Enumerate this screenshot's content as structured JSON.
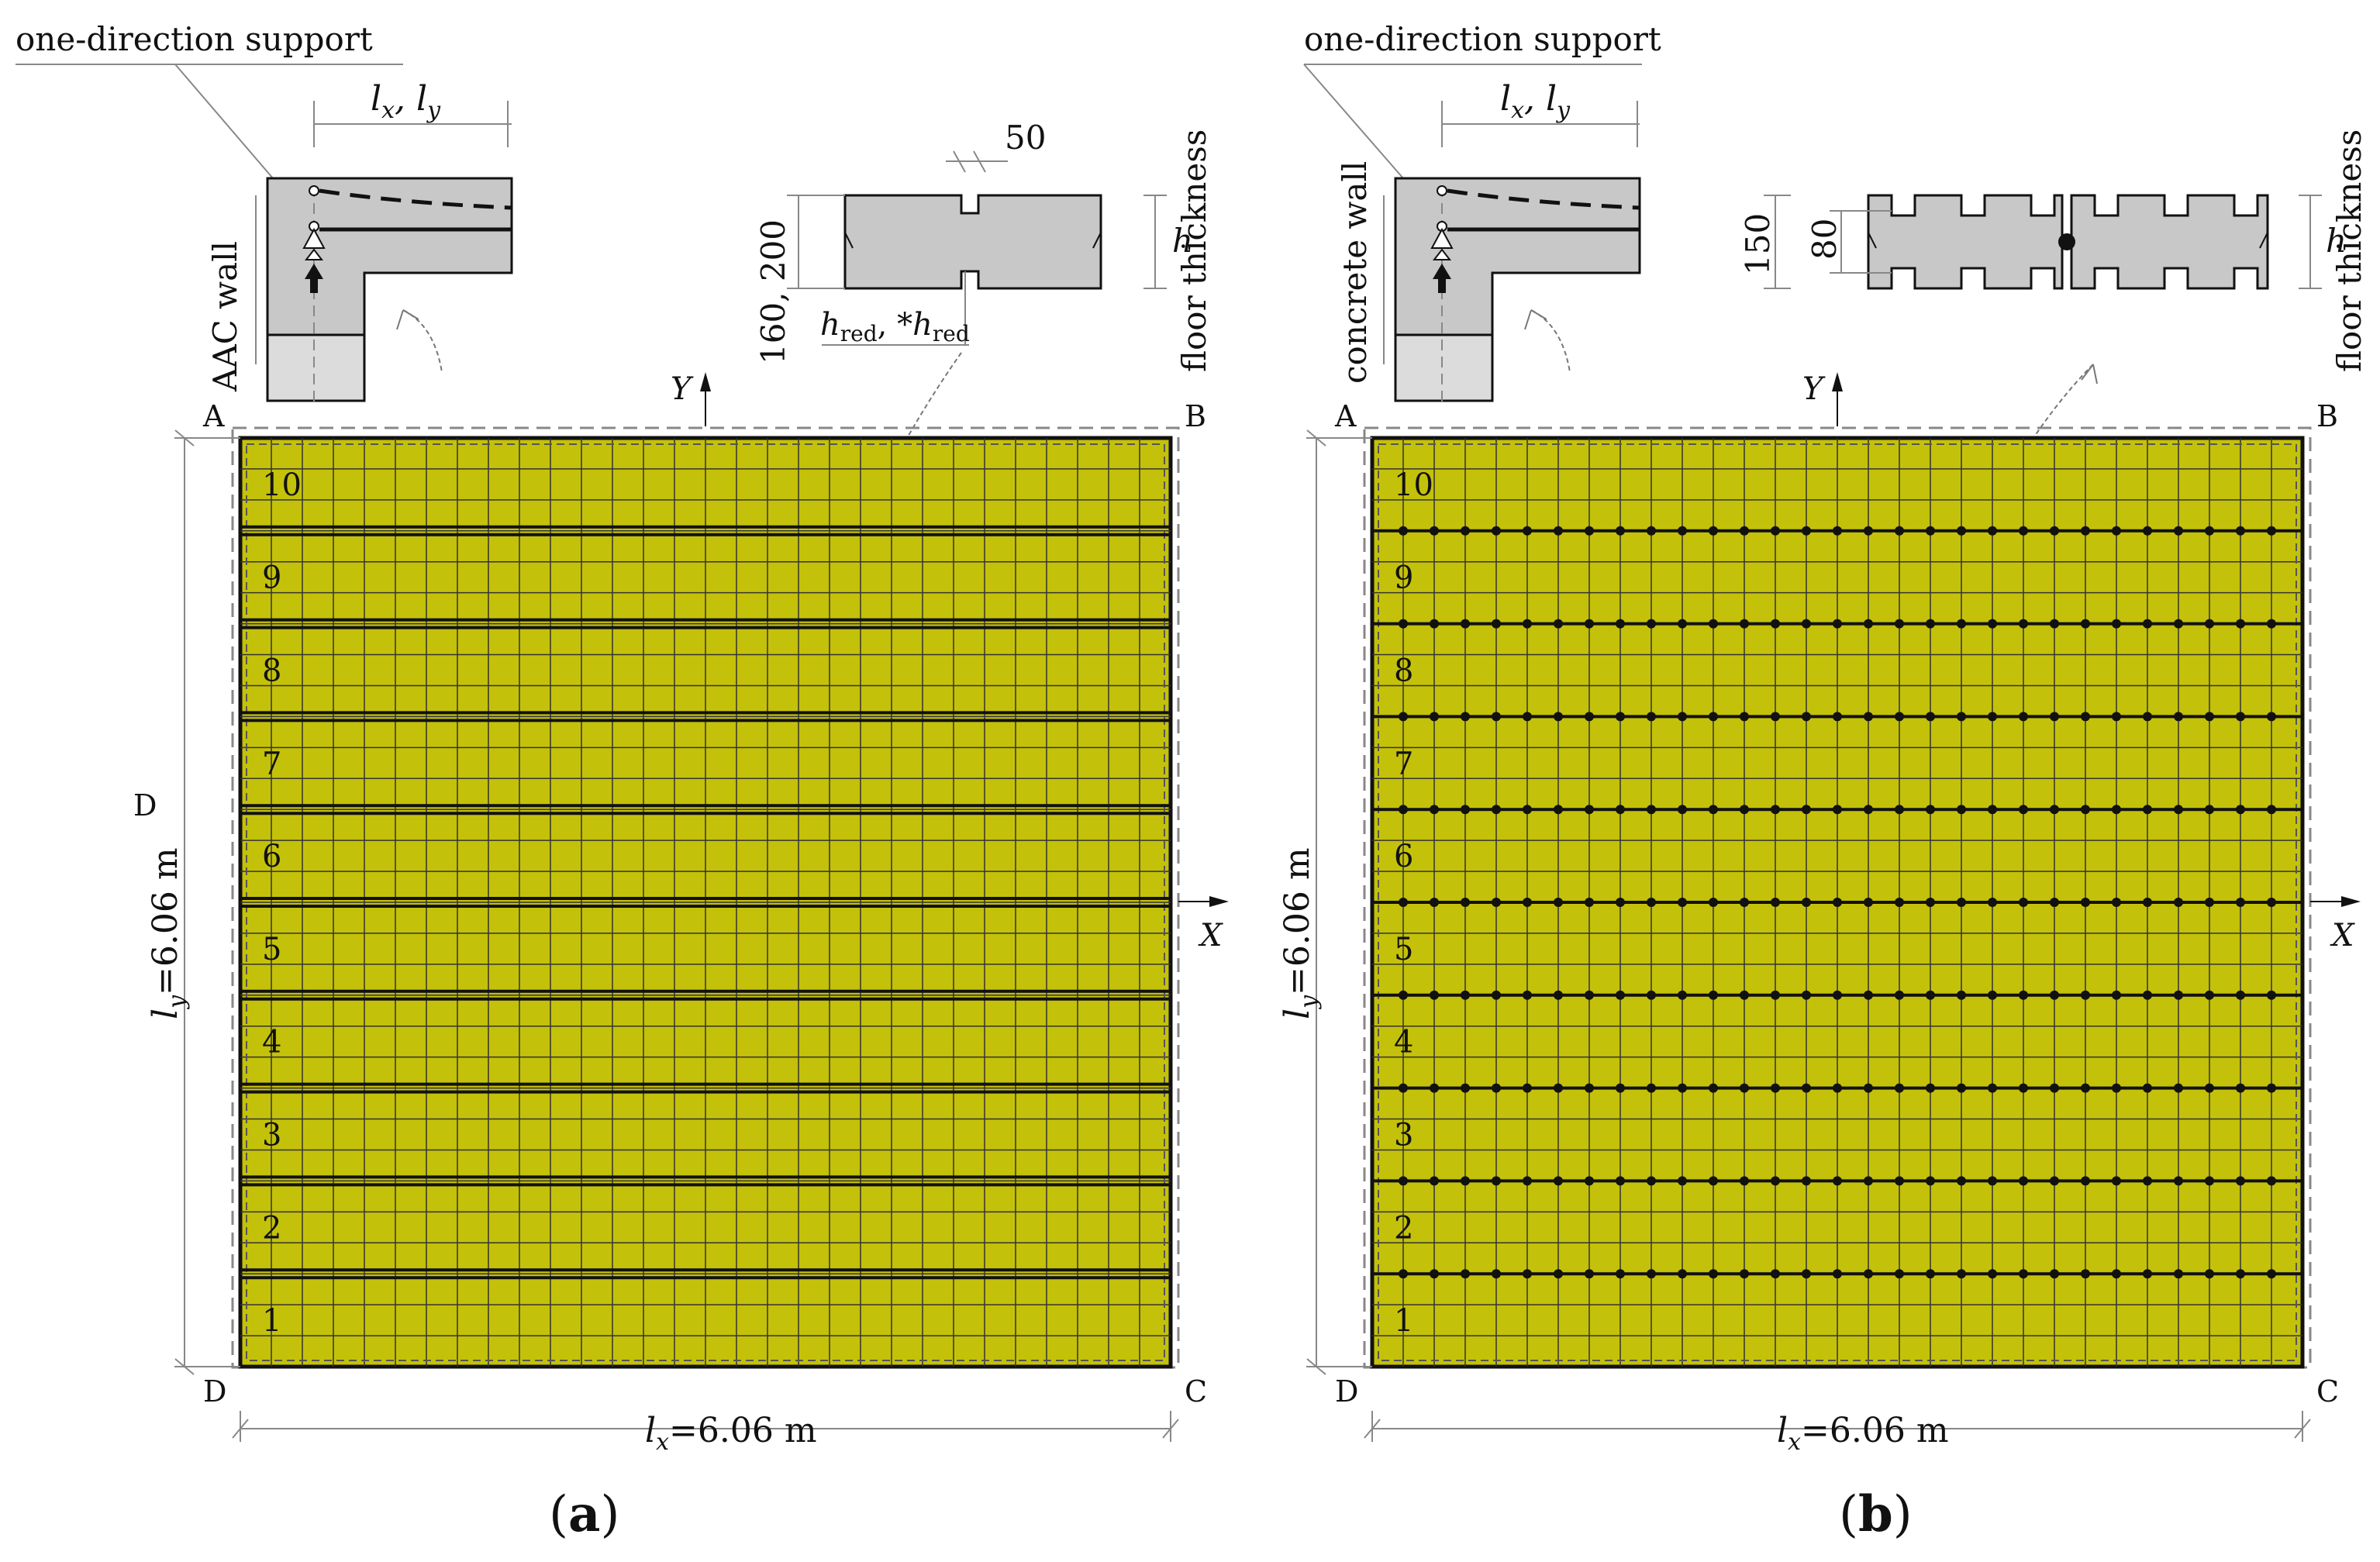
{
  "colors": {
    "slab_fill": "#c4c10a",
    "detail_fill": "#c8c8c8",
    "detail_light": "#dcdcdc",
    "line": "#111111",
    "dim_line": "#888888"
  },
  "panels": [
    {
      "id": "a",
      "caption_letter": "a",
      "support_title": "one-direction support",
      "wall_label": "AAC wall",
      "span_label_main": "l",
      "span_label_sub_x": "x",
      "span_label_sub_y": "y",
      "joint_type": "groove",
      "dim_top": "50",
      "dim_height": "160, 200",
      "hred_label": "h",
      "hred_sub": "red",
      "hred_sep": ", *",
      "h_label": "h",
      "floor_thickness": "floor thickness",
      "axis_y": "Y",
      "axis_x": "X",
      "corners": [
        "A",
        "B",
        "C",
        "D"
      ],
      "side_label": "D",
      "ly_dim_main": "l",
      "ly_dim_sub": "y",
      "ly_dim_value": "=6.06 m",
      "lx_dim_main": "l",
      "lx_dim_sub": "x",
      "lx_dim_value": "=6.06 m",
      "strip_numbers": [
        "1",
        "2",
        "3",
        "4",
        "5",
        "6",
        "7",
        "8",
        "9",
        "10"
      ]
    },
    {
      "id": "b",
      "caption_letter": "b",
      "support_title": "one-direction support",
      "wall_label": "concrete wall",
      "span_label_main": "l",
      "span_label_sub_x": "x",
      "span_label_sub_y": "y",
      "joint_type": "hinge",
      "dim_outer": "150",
      "dim_inner": "80",
      "h_label": "h",
      "floor_thickness": "floor thickness",
      "axis_y": "Y",
      "axis_x": "X",
      "corners": [
        "A",
        "B",
        "C",
        "D"
      ],
      "ly_dim_main": "l",
      "ly_dim_sub": "y",
      "ly_dim_value": "=6.06 m",
      "lx_dim_main": "l",
      "lx_dim_sub": "x",
      "lx_dim_value": "=6.06 m",
      "strip_numbers": [
        "1",
        "2",
        "3",
        "4",
        "5",
        "6",
        "7",
        "8",
        "9",
        "10"
      ]
    }
  ]
}
